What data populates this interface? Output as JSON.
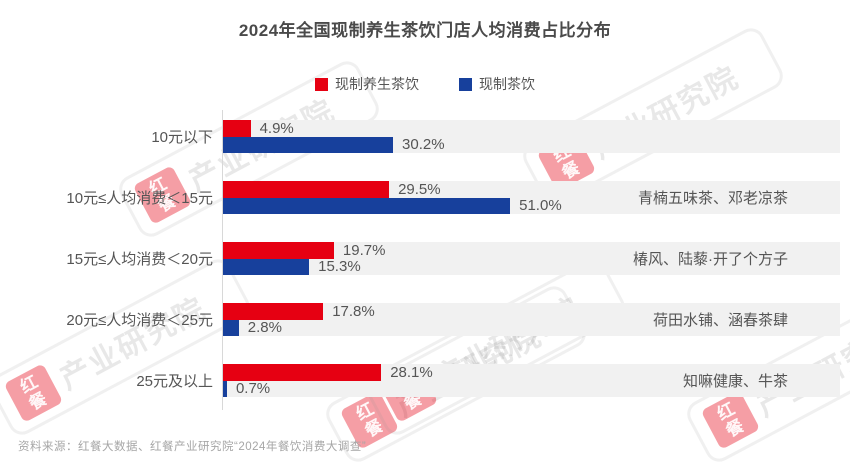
{
  "title": "2024年全国现制养生茶饮门店人均消费占比分布",
  "legend": [
    {
      "label": "现制养生茶饮",
      "color": "#e60012"
    },
    {
      "label": "现制茶饮",
      "color": "#17409c"
    }
  ],
  "chart_data": {
    "type": "bar",
    "orientation": "horizontal",
    "title": "2024年全国现制养生茶饮门店人均消费占比分布",
    "categories": [
      "10元以下",
      "10元≤人均消费＜15元",
      "15元≤人均消费＜20元",
      "20元≤人均消费＜25元",
      "25元及以上"
    ],
    "series": [
      {
        "name": "现制养生茶饮",
        "color": "#e60012",
        "values": [
          4.9,
          29.5,
          19.7,
          17.8,
          28.1
        ]
      },
      {
        "name": "现制茶饮",
        "color": "#17409c",
        "values": [
          30.2,
          51.0,
          15.3,
          2.8,
          0.7
        ]
      }
    ],
    "annotations": [
      "",
      "青楠五味茶、邓老凉茶",
      "椿风、陆藜·开了个方子",
      "荷田水铺、涵春茶肆",
      "知嘛健康、牛茶"
    ],
    "value_suffix": "%",
    "xlim": [
      0,
      110
    ],
    "grid": false,
    "legend_position": "top",
    "row_band_color": "#f1f1f1"
  },
  "watermark": {
    "logo": "红餐",
    "text": "产业研究院"
  },
  "footer": "资料来源：红餐大数据、红餐产业研究院“2024年餐饮消费大调查”"
}
